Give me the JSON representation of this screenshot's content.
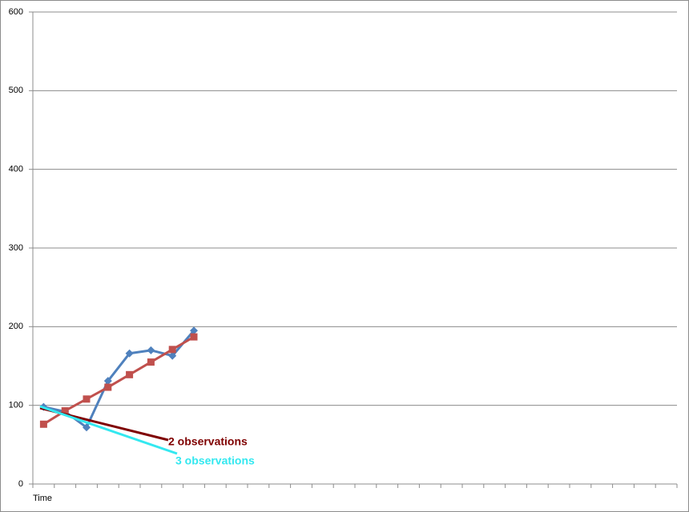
{
  "chart_data": {
    "type": "line",
    "x_label": "Time",
    "categories": [
      null,
      null,
      null,
      null,
      null,
      null,
      null,
      null,
      null,
      null,
      null,
      null,
      null,
      null,
      null,
      null,
      null,
      null,
      null,
      null,
      null,
      null,
      null,
      null,
      null,
      null,
      null,
      null,
      null,
      null
    ],
    "series": [
      {
        "color": "#4f81bd",
        "marker": "diamond",
        "values": [
          98,
          92,
          72,
          131,
          166,
          170,
          163,
          195,
          null,
          null,
          null,
          null,
          null,
          null,
          null,
          null,
          null,
          null,
          null,
          null,
          null,
          null,
          null,
          null,
          null,
          null,
          null,
          null,
          null,
          null
        ]
      },
      {
        "color": "#c0504d",
        "marker": "square",
        "values": [
          76,
          93,
          108,
          123,
          139,
          155,
          171,
          187,
          null,
          null,
          null,
          null,
          null,
          null,
          null,
          null,
          null,
          null,
          null,
          null,
          null,
          null,
          null,
          null,
          null,
          null,
          null,
          null,
          null,
          null
        ]
      }
    ],
    "annotations": [
      {
        "text": "2 observations",
        "color": "#7f0000"
      },
      {
        "text": "3 observations",
        "color": "#33e8f0"
      }
    ],
    "ylim": [
      0,
      600
    ],
    "yticks": [
      0,
      100,
      200,
      300,
      400,
      500,
      600
    ],
    "grid": true
  }
}
